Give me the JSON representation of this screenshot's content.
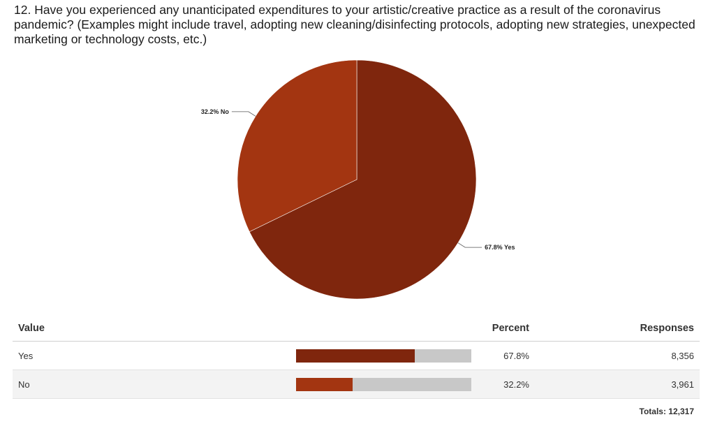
{
  "question": "12. Have you experienced any unanticipated expenditures to your artistic/creative practice as a result of the coronavirus pandemic? (Examples might include travel, adopting new cleaning/disinfecting protocols, adopting new strategies, unexpected marketing or technology costs, etc.)",
  "chart_data": {
    "type": "pie",
    "slices": [
      {
        "label": "Yes",
        "percent": 67.8,
        "percent_text": "67.8%",
        "responses": 8356,
        "responses_text": "8,356",
        "color": "#7f260d",
        "pie_label": "67.8% Yes"
      },
      {
        "label": "No",
        "percent": 32.2,
        "percent_text": "32.2%",
        "responses": 3961,
        "responses_text": "3,961",
        "color": "#a33511",
        "pie_label": "32.2% No"
      }
    ]
  },
  "table": {
    "headers": {
      "value": "Value",
      "percent": "Percent",
      "responses": "Responses"
    },
    "totals": "Totals: 12,317"
  },
  "colors": {
    "bar_track": "#c8c8c8"
  }
}
